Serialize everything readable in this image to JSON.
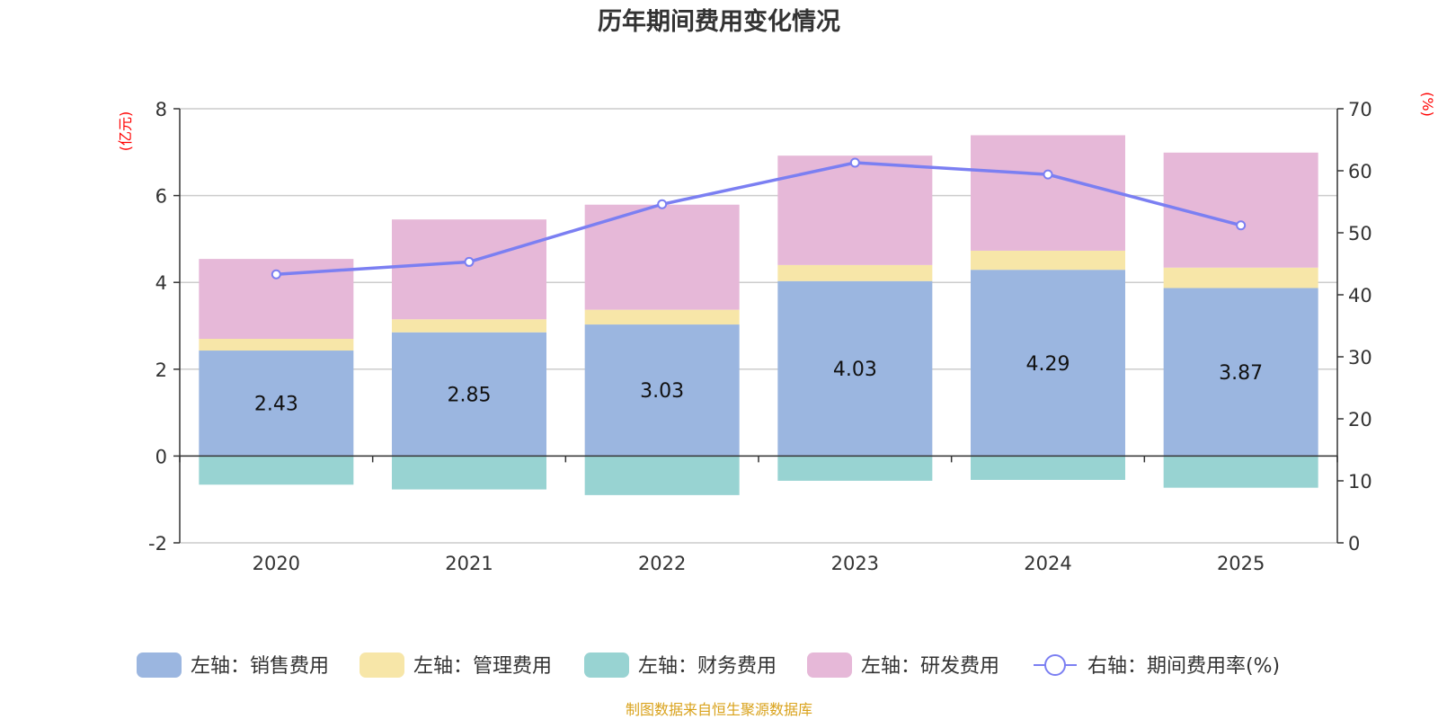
{
  "chart_data": {
    "type": "bar",
    "title": "历年期间费用变化情况",
    "categories": [
      "2020",
      "2021",
      "2022",
      "2023",
      "2024",
      "2025"
    ],
    "left_axis": {
      "unit": "(亿元)",
      "range": [
        -2,
        8
      ],
      "ticks": [
        "-2",
        "0",
        "2",
        "4",
        "6",
        "8"
      ]
    },
    "right_axis": {
      "unit": "(%)",
      "range": [
        0,
        70
      ],
      "ticks": [
        "0",
        "10",
        "20",
        "30",
        "40",
        "50",
        "60",
        "70"
      ]
    },
    "series": [
      {
        "name": "左轴：销售费用",
        "axis": "left",
        "stack": true,
        "color": "#9bb6e0",
        "values": [
          2.43,
          2.85,
          3.03,
          4.03,
          4.29,
          3.87
        ],
        "labels": [
          "2.43",
          "2.85",
          "3.03",
          "4.03",
          "4.29",
          "3.87"
        ]
      },
      {
        "name": "左轴：管理费用",
        "axis": "left",
        "stack": true,
        "color": "#f7e6a8",
        "values": [
          0.27,
          0.3,
          0.34,
          0.37,
          0.44,
          0.47
        ]
      },
      {
        "name": "左轴：财务费用",
        "axis": "left",
        "stack": true,
        "color": "#98d3d2",
        "values": [
          -0.66,
          -0.77,
          -0.9,
          -0.57,
          -0.55,
          -0.73
        ]
      },
      {
        "name": "左轴：研发费用",
        "axis": "left",
        "stack": true,
        "color": "#e6b8d8",
        "values": [
          1.84,
          2.3,
          2.42,
          2.52,
          2.66,
          2.65
        ]
      },
      {
        "name": "右轴：期间费用率(%)",
        "axis": "right",
        "type": "line",
        "color": "#7b7ff2",
        "values": [
          43.3,
          45.3,
          54.6,
          61.3,
          59.4,
          51.2
        ]
      }
    ]
  },
  "source": {
    "text": "制图数据来自恒生聚源数据库",
    "color": "#d9a21b"
  }
}
